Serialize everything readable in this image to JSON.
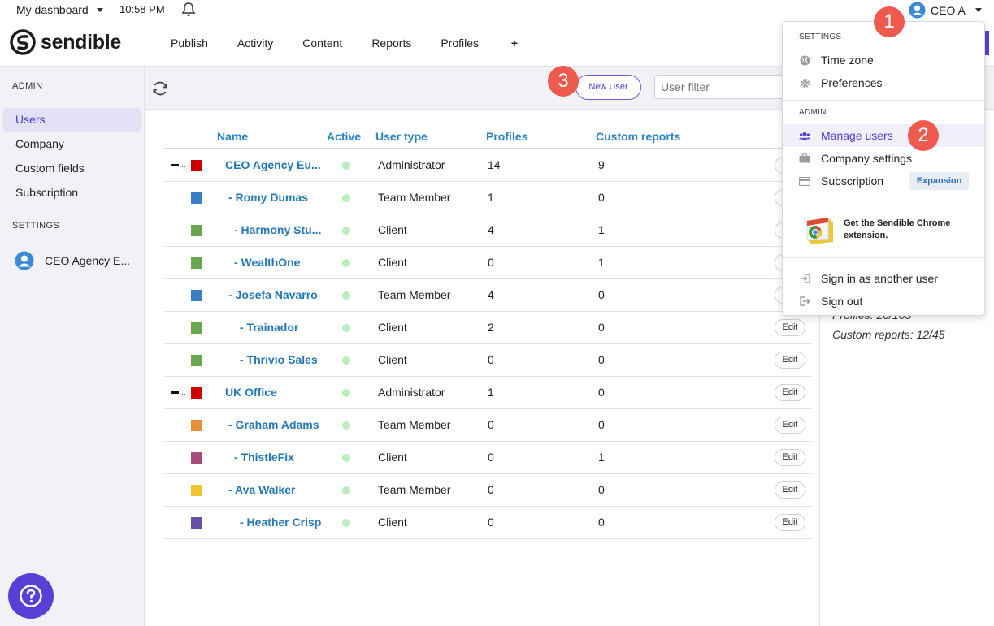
{
  "topbar": {
    "dashboard_label": "My dashboard",
    "time": "10:58 PM",
    "user_name": "CEO A"
  },
  "brand": {
    "logo_text": "sendible",
    "accent": "#5a3fd6"
  },
  "nav": {
    "items": [
      "Publish",
      "Activity",
      "Content",
      "Reports",
      "Profiles"
    ],
    "profiles_suffix": "+"
  },
  "sidebar": {
    "admin_heading": "ADMIN",
    "items": [
      {
        "label": "Users",
        "active": true
      },
      {
        "label": "Company",
        "active": false
      },
      {
        "label": "Custom fields",
        "active": false
      },
      {
        "label": "Subscription",
        "active": false
      }
    ],
    "settings_heading": "SETTINGS",
    "account_label": "CEO Agency E..."
  },
  "toolbar": {
    "new_user_label": "New User",
    "filter_placeholder": "User filter"
  },
  "table": {
    "headers": [
      "Name",
      "Active",
      "User type",
      "Profiles",
      "Custom reports"
    ],
    "edit_label": "Edit",
    "rows": [
      {
        "name": "CEO Agency Eu...",
        "indent": 0,
        "color": "#cc0000",
        "type": "Administrator",
        "profiles": "14",
        "reports": "9",
        "collapse": true
      },
      {
        "name": "- Romy Dumas",
        "indent": 1,
        "color": "#3a7fc6",
        "type": "Team Member",
        "profiles": "1",
        "reports": "0",
        "collapse": false
      },
      {
        "name": "- Harmony Stu...",
        "indent": 2,
        "color": "#6aa84f",
        "type": "Client",
        "profiles": "4",
        "reports": "1",
        "collapse": false
      },
      {
        "name": "- WealthOne",
        "indent": 2,
        "color": "#6aa84f",
        "type": "Client",
        "profiles": "0",
        "reports": "1",
        "collapse": false
      },
      {
        "name": "- Josefa Navarro",
        "indent": 1,
        "color": "#3a7fc6",
        "type": "Team Member",
        "profiles": "4",
        "reports": "0",
        "collapse": false
      },
      {
        "name": "- Trainador",
        "indent": 3,
        "color": "#6aa84f",
        "type": "Client",
        "profiles": "2",
        "reports": "0",
        "collapse": false
      },
      {
        "name": "- Thrivio Sales",
        "indent": 3,
        "color": "#6aa84f",
        "type": "Client",
        "profiles": "0",
        "reports": "0",
        "collapse": false
      },
      {
        "name": "UK Office",
        "indent": 0,
        "color": "#cc0000",
        "type": "Administrator",
        "profiles": "1",
        "reports": "0",
        "collapse": true
      },
      {
        "name": "- Graham Adams",
        "indent": 1,
        "color": "#e69138",
        "type": "Team Member",
        "profiles": "0",
        "reports": "0",
        "collapse": false
      },
      {
        "name": "- ThistleFix",
        "indent": 2,
        "color": "#a64d79",
        "type": "Client",
        "profiles": "0",
        "reports": "1",
        "collapse": false
      },
      {
        "name": "- Ava Walker",
        "indent": 1,
        "color": "#f1c232",
        "type": "Team Member",
        "profiles": "0",
        "reports": "0",
        "collapse": false
      },
      {
        "name": "- Heather Crisp",
        "indent": 3,
        "color": "#674ea7",
        "type": "Client",
        "profiles": "0",
        "reports": "0",
        "collapse": false
      }
    ]
  },
  "right_panel": {
    "profiles_stat": "Profiles: 20/105",
    "reports_stat": "Custom reports: 12/45"
  },
  "dropdown": {
    "settings_heading": "SETTINGS",
    "time_zone": "Time zone",
    "preferences": "Preferences",
    "admin_heading": "ADMIN",
    "manage_users": "Manage users",
    "company_settings": "Company settings",
    "subscription": "Subscription",
    "subscription_badge": "Expansion",
    "chrome_promo": "Get the Sendible Chrome extension.",
    "sign_in_other": "Sign in as another user",
    "sign_out": "Sign out"
  },
  "callouts": [
    "1",
    "2",
    "3"
  ]
}
